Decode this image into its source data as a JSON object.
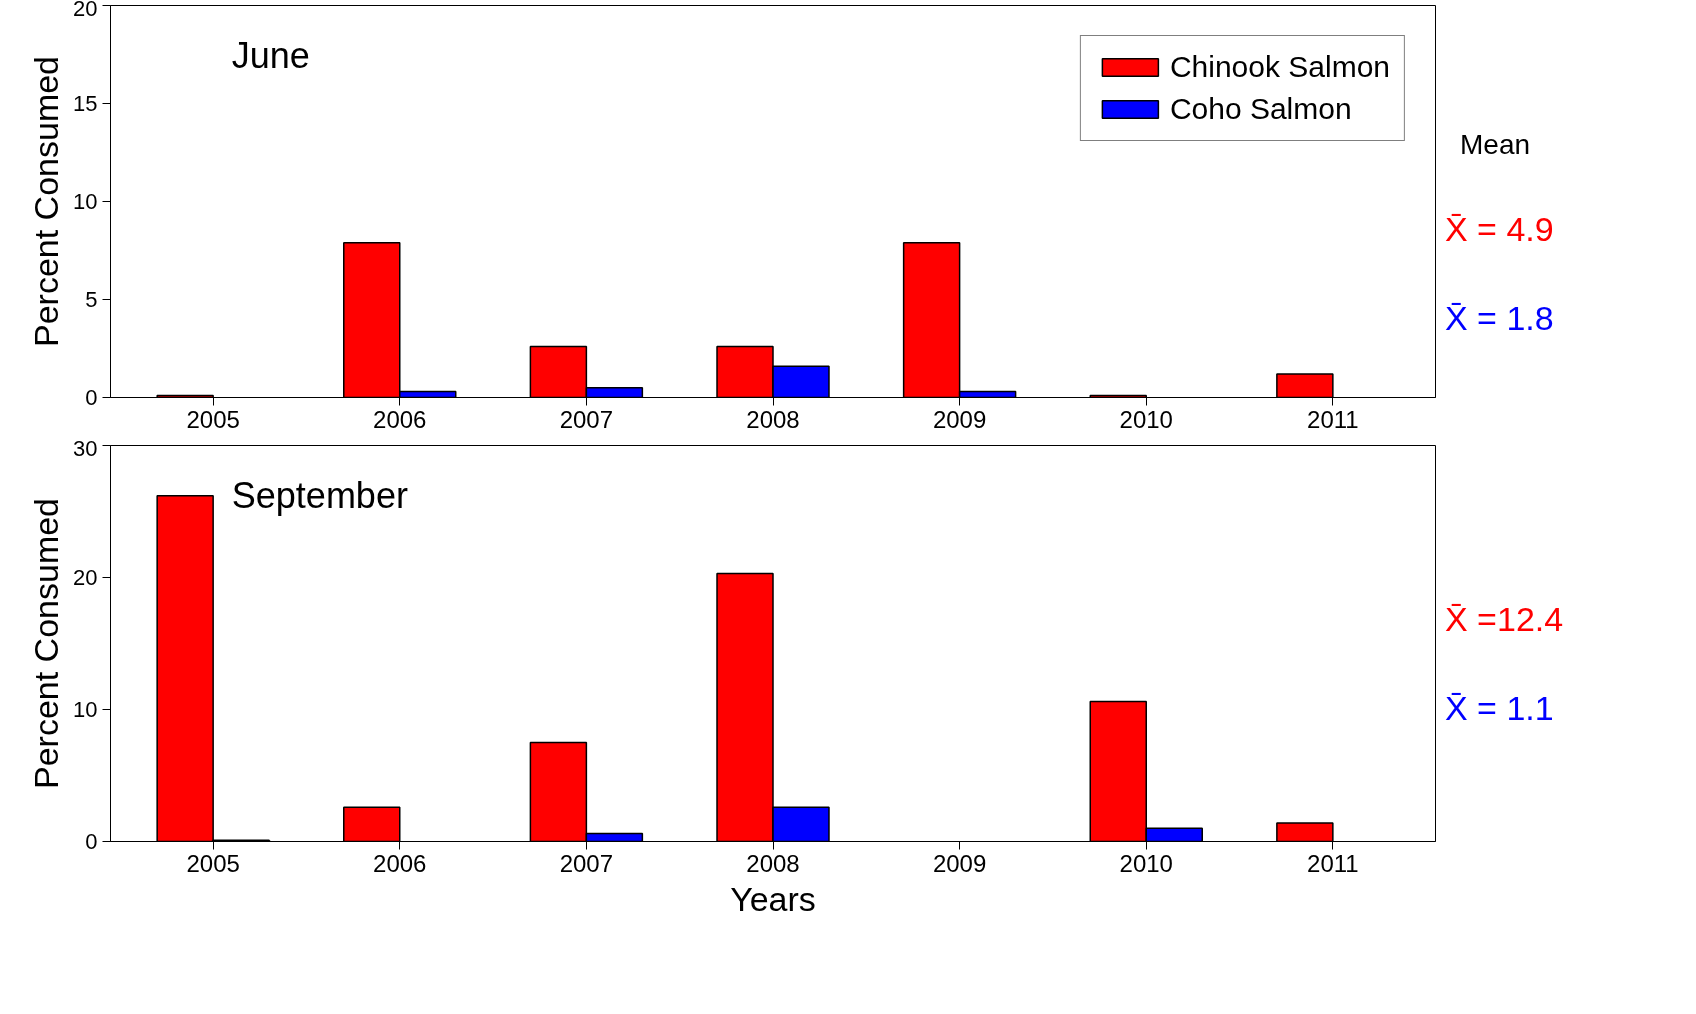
{
  "chart_data": [
    {
      "type": "bar",
      "title": "June",
      "ylabel": "Percent Consumed",
      "categories": [
        "2005",
        "2006",
        "2007",
        "2008",
        "2009",
        "2010",
        "2011"
      ],
      "series": [
        {
          "name": "Chinook Salmon",
          "color": "#ff0000",
          "values": [
            0.1,
            7.9,
            2.6,
            2.6,
            7.9,
            0.1,
            1.2
          ]
        },
        {
          "name": "Coho Salmon",
          "color": "#0000ff",
          "values": [
            null,
            0.3,
            0.5,
            1.6,
            0.3,
            null,
            null
          ]
        }
      ],
      "ylim": [
        0,
        20
      ],
      "yticks": [
        0,
        5,
        10,
        15,
        20
      ],
      "legend": "top right",
      "grid": false,
      "annotations": [
        "Mean",
        "X̄ = 4.9",
        "X̄ = 1.8"
      ]
    },
    {
      "type": "bar",
      "title": "September",
      "ylabel": "Percent Consumed",
      "xlabel": "Years",
      "categories": [
        "2005",
        "2006",
        "2007",
        "2008",
        "2009",
        "2010",
        "2011"
      ],
      "series": [
        {
          "color": "#ff0000",
          "values": [
            26.2,
            2.6,
            7.5,
            20.3,
            null,
            10.6,
            1.4
          ]
        },
        {
          "color": "#0000ff",
          "values": [
            0.1,
            null,
            0.6,
            2.6,
            null,
            1.0,
            null
          ]
        }
      ],
      "ylim": [
        0,
        30
      ],
      "yticks": [
        0,
        10,
        20,
        30
      ],
      "grid": false,
      "annotations": [
        "X̄ =12.4",
        "X̄ = 1.1"
      ]
    }
  ]
}
